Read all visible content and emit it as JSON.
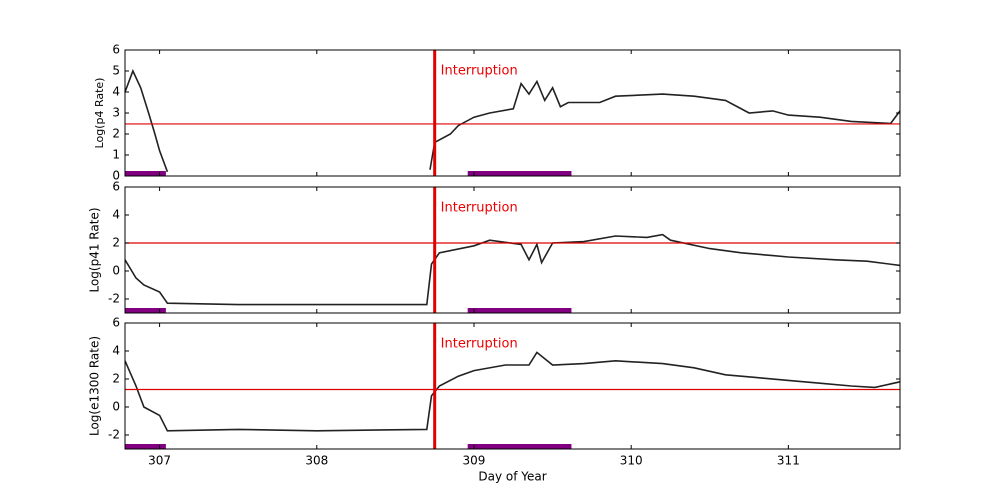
{
  "chart_data": [
    {
      "type": "line",
      "ylabel": "Log(p4 Rate)",
      "annotation": "Interruption",
      "ylim": [
        0,
        6
      ],
      "yticks": [
        0,
        1,
        2,
        3,
        4,
        5,
        6
      ],
      "vline": 308.75,
      "hline": 2.48,
      "ref_color": "#e00000",
      "bands": [
        [
          306.78,
          307.04
        ],
        [
          308.96,
          309.62
        ]
      ],
      "band_color": "#800080",
      "x": [
        306.78,
        306.83,
        306.88,
        306.93,
        306.97,
        307.0,
        307.05,
        307.5,
        308.72,
        308.75,
        308.85,
        308.9,
        309.0,
        309.1,
        309.25,
        309.3,
        309.35,
        309.4,
        309.45,
        309.5,
        309.55,
        309.6,
        309.8,
        309.9,
        310.2,
        310.4,
        310.6,
        310.75,
        310.9,
        311.0,
        311.2,
        311.4,
        311.65,
        311.71
      ],
      "series": [
        {
          "color": "#222222",
          "values": [
            4.0,
            5.0,
            4.2,
            3.0,
            2.0,
            1.2,
            0.2,
            null,
            0.3,
            1.6,
            2.0,
            2.4,
            2.8,
            3.0,
            3.2,
            4.4,
            3.9,
            4.5,
            3.6,
            4.2,
            3.3,
            3.5,
            3.5,
            3.8,
            3.9,
            3.8,
            3.6,
            3.0,
            3.1,
            2.9,
            2.8,
            2.6,
            2.5,
            3.1
          ]
        }
      ]
    },
    {
      "type": "line",
      "ylabel": "Log(p41 Rate)",
      "annotation": "Interruption",
      "ylim": [
        -3,
        6
      ],
      "yticks": [
        -2,
        0,
        2,
        4,
        6
      ],
      "vline": 308.75,
      "hline": 2.0,
      "ref_color": "#e00000",
      "bands": [
        [
          306.78,
          307.04
        ],
        [
          308.96,
          309.62
        ]
      ],
      "band_color": "#800080",
      "x": [
        306.78,
        306.85,
        306.9,
        307.0,
        307.05,
        307.5,
        308.0,
        308.7,
        308.73,
        308.78,
        309.0,
        309.1,
        309.3,
        309.35,
        309.4,
        309.43,
        309.5,
        309.7,
        309.9,
        310.1,
        310.2,
        310.25,
        310.5,
        310.7,
        310.9,
        311.0,
        311.3,
        311.5,
        311.71
      ],
      "series": [
        {
          "color": "#222222",
          "values": [
            0.8,
            -0.5,
            -1.0,
            -1.5,
            -2.3,
            -2.4,
            -2.4,
            -2.4,
            0.5,
            1.3,
            1.8,
            2.2,
            1.9,
            0.8,
            1.9,
            0.6,
            2.0,
            2.1,
            2.5,
            2.4,
            2.6,
            2.2,
            1.6,
            1.3,
            1.1,
            1.0,
            0.8,
            0.7,
            0.4
          ]
        }
      ]
    },
    {
      "type": "line",
      "ylabel": "Log(e1300 Rate)",
      "annotation": "Interruption",
      "xlabel": "Day of Year",
      "ylim": [
        -3,
        6
      ],
      "yticks": [
        -2,
        0,
        2,
        4,
        6
      ],
      "xlim": [
        306.78,
        311.71
      ],
      "xticks": [
        307,
        308,
        309,
        310,
        311
      ],
      "vline": 308.75,
      "hline": 1.25,
      "ref_color": "#e00000",
      "bands": [
        [
          306.78,
          307.04
        ],
        [
          308.96,
          309.62
        ]
      ],
      "band_color": "#800080",
      "x": [
        306.78,
        306.85,
        306.9,
        307.0,
        307.05,
        307.5,
        308.0,
        308.7,
        308.73,
        308.78,
        308.9,
        309.0,
        309.2,
        309.35,
        309.4,
        309.5,
        309.7,
        309.9,
        310.2,
        310.4,
        310.6,
        310.8,
        311.0,
        311.2,
        311.4,
        311.55,
        311.71
      ],
      "series": [
        {
          "color": "#222222",
          "values": [
            3.3,
            1.5,
            0.0,
            -0.6,
            -1.7,
            -1.6,
            -1.7,
            -1.6,
            0.8,
            1.5,
            2.2,
            2.6,
            3.0,
            3.0,
            3.9,
            3.0,
            3.1,
            3.3,
            3.1,
            2.8,
            2.3,
            2.1,
            1.9,
            1.7,
            1.5,
            1.4,
            1.8
          ]
        }
      ]
    }
  ]
}
